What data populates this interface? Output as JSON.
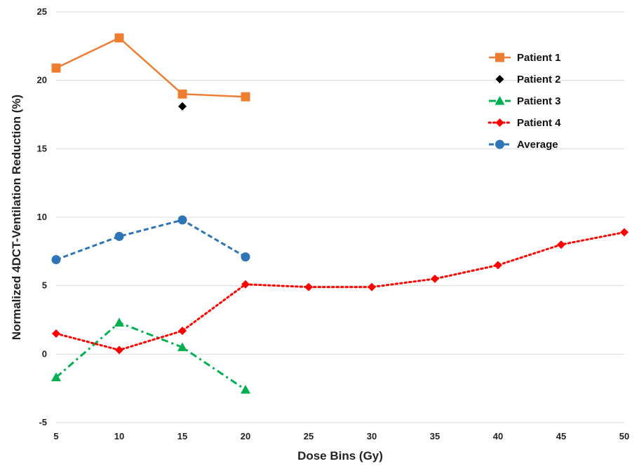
{
  "chart_data": {
    "type": "line",
    "xlabel": "Dose Bins (Gy)",
    "ylabel": "Normalized 4DCT-Ventilation Reduction (%)",
    "xlim": [
      5,
      50
    ],
    "ylim": [
      -5,
      25
    ],
    "x_ticks": [
      "5",
      "10",
      "15",
      "20",
      "25",
      "30",
      "35",
      "40",
      "45",
      "50"
    ],
    "y_ticks": [
      "-5",
      "0",
      "5",
      "10",
      "15",
      "20",
      "25"
    ],
    "grid": "horizontal",
    "legend_position": "top-right",
    "series": [
      {
        "name": "Patient 1",
        "color": "#ED7D31",
        "marker": "square",
        "line": "solid",
        "points": [
          [
            5,
            20.9
          ],
          [
            10,
            23.1
          ],
          [
            15,
            19.0
          ],
          [
            20,
            18.8
          ]
        ]
      },
      {
        "name": "Patient 2",
        "color": "#000000",
        "marker": "diamond",
        "line": "none",
        "points": [
          [
            15,
            18.1
          ]
        ]
      },
      {
        "name": "Patient 3",
        "color": "#00B050",
        "marker": "triangle",
        "line": "dash-dot",
        "points": [
          [
            5,
            -1.7
          ],
          [
            10,
            2.3
          ],
          [
            15,
            0.5
          ],
          [
            20,
            -2.6
          ]
        ]
      },
      {
        "name": "Patient 4",
        "color": "#FF0000",
        "marker": "diamond",
        "line": "dotted",
        "points": [
          [
            5,
            1.5
          ],
          [
            10,
            0.3
          ],
          [
            15,
            1.7
          ],
          [
            20,
            5.1
          ],
          [
            25,
            4.9
          ],
          [
            30,
            4.9
          ],
          [
            35,
            5.5
          ],
          [
            40,
            6.5
          ],
          [
            45,
            8.0
          ],
          [
            50,
            8.9
          ]
        ]
      },
      {
        "name": "Average",
        "color": "#2E75B6",
        "marker": "circle",
        "line": "dashed",
        "points": [
          [
            5,
            6.9
          ],
          [
            10,
            8.6
          ],
          [
            15,
            9.8
          ],
          [
            20,
            7.1
          ]
        ]
      }
    ]
  }
}
